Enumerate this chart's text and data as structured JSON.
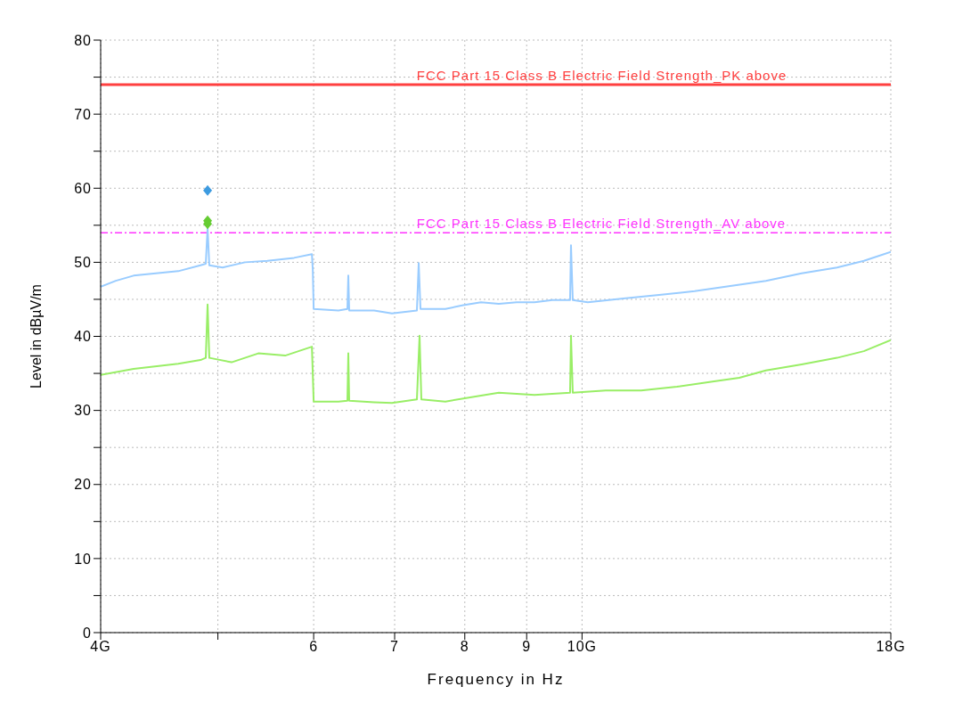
{
  "chart_data": {
    "type": "line",
    "xlabel": "Frequency in Hz",
    "ylabel": "Level in dBµV/m",
    "log": "x",
    "grid": true,
    "xlim": [
      4,
      18
    ],
    "xticks": [
      {
        "value": 4,
        "label": "4G"
      },
      {
        "value": 5,
        "label": null
      },
      6,
      7,
      8,
      9,
      {
        "value": 10,
        "label": "10G"
      },
      {
        "value": 18,
        "label": "18G"
      }
    ],
    "ylim": [
      0,
      80
    ],
    "yticks": [
      0,
      {
        "value": 5,
        "label": null
      },
      10,
      {
        "value": 15,
        "label": null
      },
      20,
      {
        "value": 25,
        "label": null
      },
      30,
      {
        "value": 35,
        "label": null
      },
      40,
      {
        "value": 45,
        "label": null
      },
      50,
      {
        "value": 55,
        "label": null
      },
      60,
      {
        "value": 65,
        "label": null
      },
      70,
      {
        "value": 75,
        "label": null
      },
      80
    ],
    "ref_lines": [
      {
        "axis": "y",
        "value": 74,
        "label": "FCC Part 15 Class B Electric Field Strength_PK above",
        "color": "#ff4040",
        "line_style": "solid"
      },
      {
        "axis": "y",
        "value": 54,
        "label": "FCC Part 15 Class B Electric Field Strength_AV above",
        "color": "#ff33ff",
        "line_style": "dashed"
      }
    ],
    "series": [
      {
        "color": "#99ccff",
        "marker": "none",
        "x": [
          4.0,
          4.117,
          4.259,
          4.443,
          4.636,
          4.837,
          4.886,
          4.903,
          4.919,
          5.046,
          5.265,
          5.493,
          5.78,
          5.98,
          5.99,
          6.0,
          6.29,
          6.398,
          6.409,
          6.42,
          6.732,
          6.964,
          7.303,
          7.328,
          7.353,
          7.709,
          7.976,
          8.251,
          8.535,
          8.83,
          9.134,
          9.449,
          9.775,
          9.792,
          9.825,
          10.11,
          10.82,
          11.58,
          12.39,
          13.26,
          14.19,
          15.19,
          16.25,
          17.1,
          18.0
        ],
        "values": [
          46.7,
          47.5,
          48.2,
          48.5,
          48.8,
          49.6,
          49.8,
          54.6,
          49.6,
          49.3,
          50.0,
          50.2,
          50.6,
          51.1,
          49.0,
          43.7,
          43.5,
          43.7,
          48.2,
          43.5,
          43.5,
          43.1,
          43.5,
          49.9,
          43.7,
          43.7,
          44.2,
          44.6,
          44.4,
          44.6,
          44.6,
          44.9,
          44.9,
          52.3,
          44.9,
          44.6,
          45.1,
          45.6,
          46.1,
          46.8,
          47.5,
          48.5,
          49.3,
          50.2,
          51.4
        ]
      },
      {
        "color": "#99ee66",
        "marker": "none",
        "x": [
          4.0,
          4.259,
          4.636,
          4.837,
          4.886,
          4.903,
          4.919,
          5.132,
          5.4,
          5.683,
          5.98,
          6.0,
          6.29,
          6.398,
          6.409,
          6.42,
          6.732,
          6.964,
          7.303,
          7.34,
          7.365,
          7.709,
          8.251,
          8.535,
          9.134,
          9.775,
          9.792,
          9.825,
          10.46,
          11.19,
          11.98,
          12.82,
          13.49,
          14.19,
          15.19,
          16.25,
          17.1,
          18.0
        ],
        "values": [
          34.8,
          35.6,
          36.3,
          36.8,
          37.1,
          44.3,
          37.1,
          36.5,
          37.7,
          37.4,
          38.6,
          31.2,
          31.2,
          31.3,
          37.7,
          31.3,
          31.1,
          31.0,
          31.5,
          40.1,
          31.5,
          31.2,
          32.0,
          32.4,
          32.1,
          32.4,
          40.1,
          32.4,
          32.7,
          32.7,
          33.2,
          33.9,
          34.4,
          35.4,
          36.2,
          37.1,
          38.0,
          39.5
        ]
      },
      {
        "type": "scatter",
        "color": "#3d9be0",
        "marker": "diamond",
        "x": [
          4.903
        ],
        "values": [
          59.7
        ]
      },
      {
        "type": "scatter",
        "color": "#66cc33",
        "marker": "diamond",
        "x": [
          4.903,
          4.903
        ],
        "values": [
          55.6,
          55.2
        ]
      }
    ]
  }
}
